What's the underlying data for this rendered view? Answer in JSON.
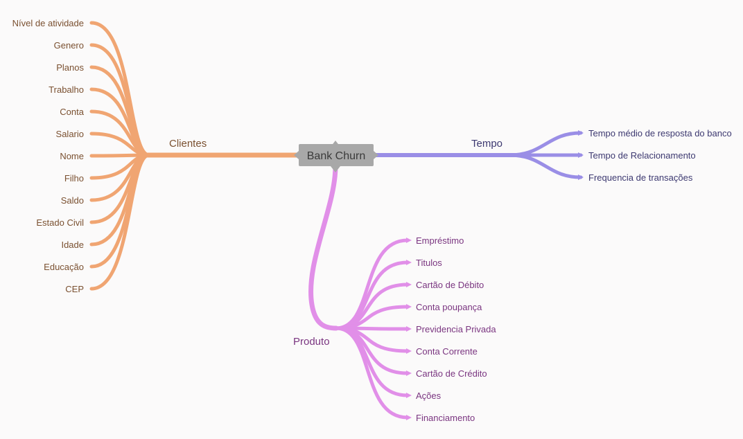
{
  "root": {
    "label": "Bank Churn",
    "color": "#a8a8a8"
  },
  "branches": {
    "clientes": {
      "label": "Clientes",
      "color": "#f0a572",
      "text_color": "#7a5030",
      "items": [
        "Nível de atividade",
        "Genero",
        "Planos",
        "Trabalho",
        "Conta",
        "Salario",
        "Nome",
        "Filho",
        "Saldo",
        "Estado Civil",
        "Idade",
        "Educação",
        "CEP"
      ]
    },
    "tempo": {
      "label": "Tempo",
      "color": "#9a8ee6",
      "text_color": "#3c3870",
      "items": [
        "Tempo médio de resposta do banco",
        "Tempo de Relacionamento",
        "Frequencia de transações"
      ]
    },
    "produto": {
      "label": "Produto",
      "color": "#e18fe8",
      "text_color": "#7a3580",
      "items": [
        "Empréstimo",
        "Titulos",
        "Cartão de Débito",
        "Conta poupança",
        "Previdencia Privada",
        "Conta Corrente",
        "Cartão de Crédito",
        "Ações",
        "Financiamento"
      ]
    }
  }
}
